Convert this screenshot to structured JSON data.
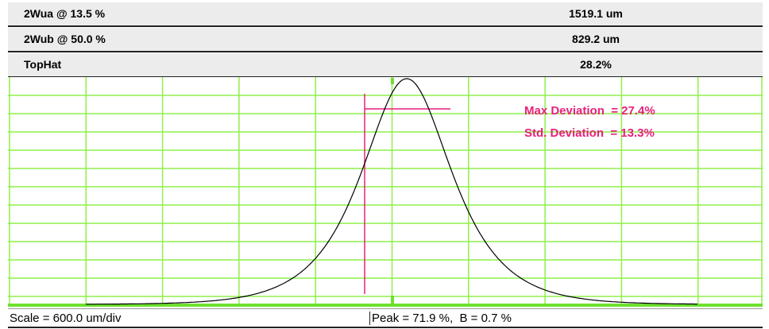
{
  "table": {
    "rows": [
      [
        "2Wua @ 13.5 %",
        "1519.1 um"
      ],
      [
        "2Wub @ 50.0 %",
        "829.2 um"
      ],
      [
        "TopHat",
        "28.2%"
      ]
    ]
  },
  "annotations": [
    "Max Deviation  = 27.4%",
    "Std. Deviation  = 13.3%"
  ],
  "status": {
    "scale": "Scale = 600.0 um/div",
    "peak": "Peak = 71.9 %,  B = 0.7 %"
  }
}
